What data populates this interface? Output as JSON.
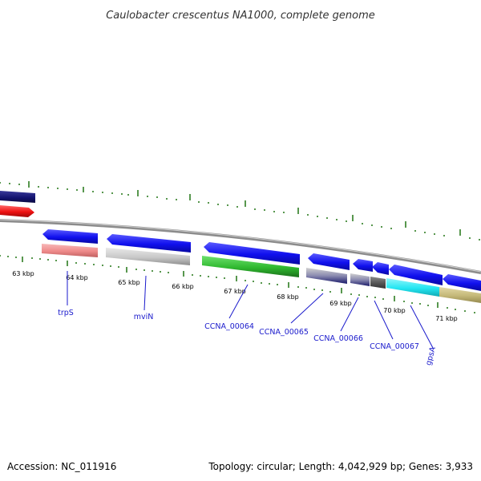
{
  "title": "Caulobacter crescentus NA1000, complete genome",
  "footer": {
    "accession": "Accession: NC_011916",
    "summary": "Topology: circular; Length: 4,042,929 bp; Genes: 3,933"
  },
  "kbp_labels": [
    "63 kbp",
    "64 kbp",
    "65 kbp",
    "66 kbp",
    "67 kbp",
    "68 kbp",
    "69 kbp",
    "70 kbp",
    "71 kbp"
  ],
  "gene_labels": [
    "trpS",
    "mviN",
    "CCNA_00064",
    "CCNA_00065",
    "CCNA_00066",
    "CCNA_00067",
    "gpsA"
  ],
  "colors": {
    "blue": "#1010ee",
    "navy": "#12126e",
    "red": "#ee1111",
    "pink": "#ee8a8a",
    "gray": "#c8c8c8",
    "green": "#2fb82f",
    "cyan": "#22e6f2",
    "khaki": "#c4b878",
    "tick": "#2e7d22",
    "backbone": "#8c8c8c"
  }
}
